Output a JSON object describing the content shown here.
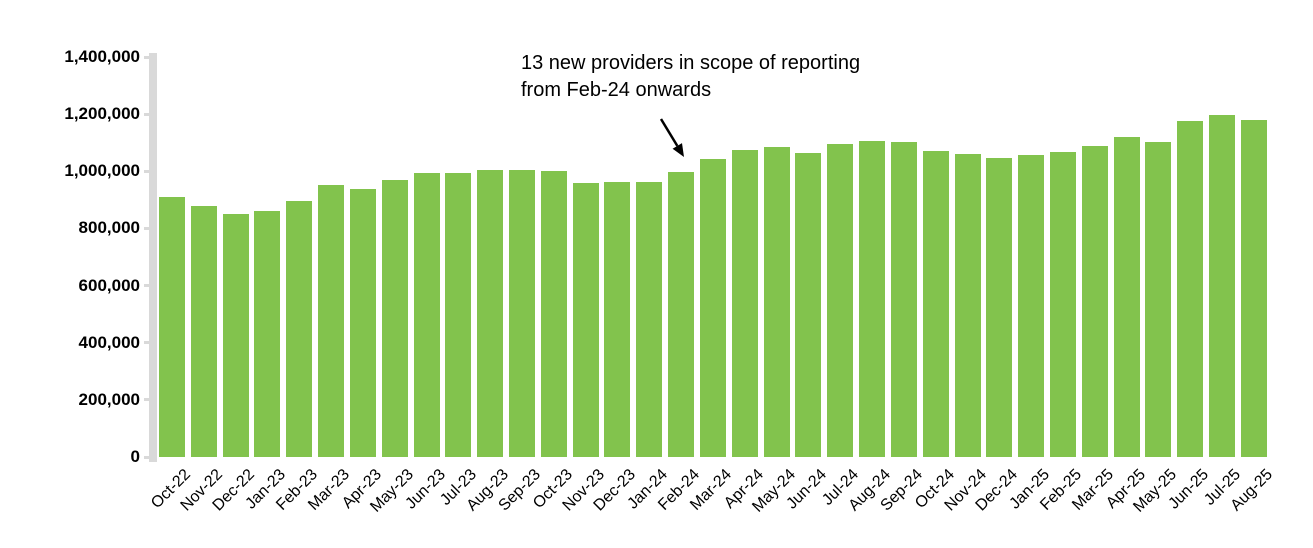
{
  "chart_data": {
    "type": "bar",
    "title": "",
    "xlabel": "",
    "ylabel": "",
    "categories": [
      "Oct-22",
      "Nov-22",
      "Dec-22",
      "Jan-23",
      "Feb-23",
      "Mar-23",
      "Apr-23",
      "May-23",
      "Jun-23",
      "Jul-23",
      "Aug-23",
      "Sep-23",
      "Oct-23",
      "Nov-23",
      "Dec-23",
      "Jan-24",
      "Feb-24",
      "Mar-24",
      "Apr-24",
      "May-24",
      "Jun-24",
      "Jul-24",
      "Aug-24",
      "Sep-24",
      "Oct-24",
      "Nov-24",
      "Dec-24",
      "Jan-25",
      "Feb-25",
      "Mar-25",
      "Apr-25",
      "May-25",
      "Jun-25",
      "Jul-25",
      "Aug-25"
    ],
    "values": [
      910000,
      877000,
      849000,
      862000,
      896000,
      951000,
      938000,
      970000,
      994000,
      993000,
      1004000,
      1005000,
      1001000,
      958000,
      964000,
      961000,
      999000,
      1043000,
      1075000,
      1086000,
      1065000,
      1097000,
      1106000,
      1101000,
      1070000,
      1061000,
      1046000,
      1056000,
      1066000,
      1089000,
      1120000,
      1103000,
      1176000,
      1196000,
      1180000
    ],
    "ylim": [
      0,
      1400000
    ],
    "ytick_interval": 200000,
    "ytick_labels": [
      "0",
      "200,000",
      "400,000",
      "600,000",
      "800,000",
      "1,000,000",
      "1,200,000",
      "1,400,000"
    ],
    "grid": false,
    "legend_position": "none",
    "bar_color": "#82C34D",
    "axis_color": "#D9D9D9",
    "text_color": "#000000"
  },
  "annotation": {
    "line1": "13 new providers in scope of reporting",
    "line2": "from Feb-24 onwards",
    "target_category": "Feb-24"
  }
}
